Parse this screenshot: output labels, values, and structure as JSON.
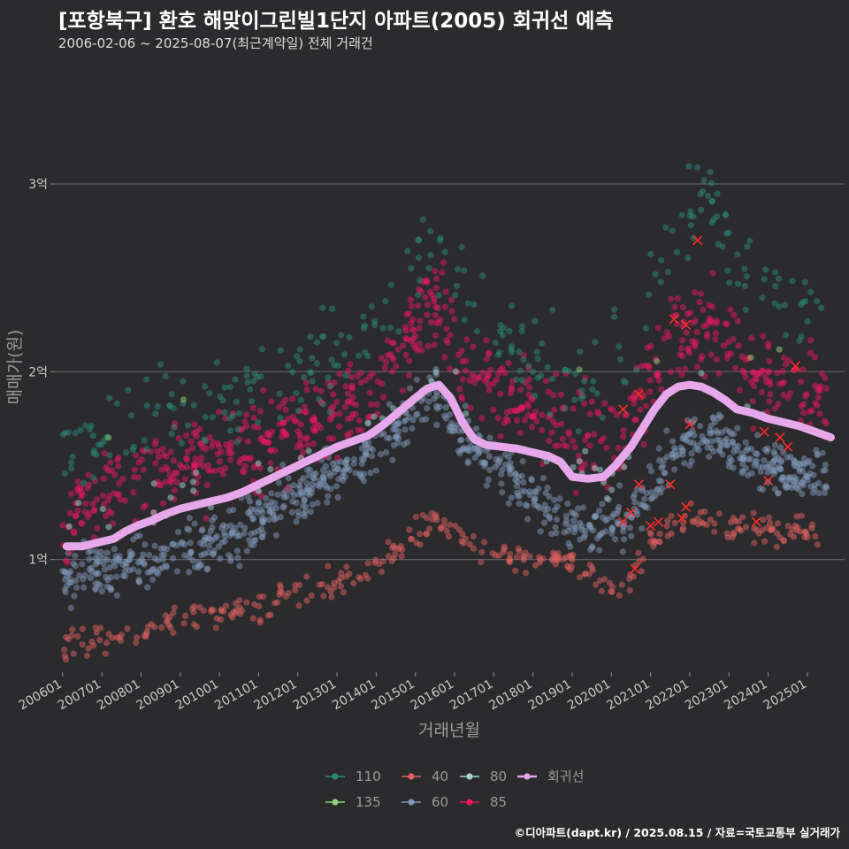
{
  "header": {
    "title": "[포항북구] 환호 해맞이그린빌1단지 아파트(2005) 회귀선 예측",
    "subtitle": "2006-02-06 ~ 2025-08-07(최근계약일) 전체 거래건"
  },
  "caption": "©디아파트(dapt.kr) / 2025.08.15 / 자료=국토교통부 실거래가",
  "chart_data": {
    "type": "scatter",
    "xlabel": "거래년월",
    "ylabel": "매매가(원)",
    "xlim": [
      2005.8,
      2025.95
    ],
    "ylim": [
      0.4,
      3.65
    ],
    "y_unit": "억",
    "x_ticks": [
      {
        "label": "200601",
        "value": 2006.0
      },
      {
        "label": "200701",
        "value": 2007.0
      },
      {
        "label": "200801",
        "value": 2008.0
      },
      {
        "label": "200901",
        "value": 2009.0
      },
      {
        "label": "201001",
        "value": 2010.0
      },
      {
        "label": "201101",
        "value": 2011.0
      },
      {
        "label": "201201",
        "value": 2012.0
      },
      {
        "label": "201301",
        "value": 2013.0
      },
      {
        "label": "201401",
        "value": 2014.0
      },
      {
        "label": "201501",
        "value": 2015.0
      },
      {
        "label": "201601",
        "value": 2016.0
      },
      {
        "label": "201701",
        "value": 2017.0
      },
      {
        "label": "201801",
        "value": 2018.0
      },
      {
        "label": "201901",
        "value": 2019.0
      },
      {
        "label": "202001",
        "value": 2020.0
      },
      {
        "label": "202101",
        "value": 2021.0
      },
      {
        "label": "202201",
        "value": 2022.0
      },
      {
        "label": "202301",
        "value": 2023.0
      },
      {
        "label": "202401",
        "value": 2024.0
      },
      {
        "label": "202501",
        "value": 2025.0
      }
    ],
    "y_ticks": [
      {
        "label": "1억",
        "value": 1
      },
      {
        "label": "2억",
        "value": 2
      },
      {
        "label": "3억",
        "value": 3
      }
    ],
    "grid": true,
    "legend_position": "bottom",
    "legend": [
      {
        "name": "110",
        "color": "#2a8a7a"
      },
      {
        "name": "40",
        "color": "#e06060"
      },
      {
        "name": "80",
        "color": "#9fd4cf"
      },
      {
        "name": "회귀선",
        "color": "#e6a8ea"
      },
      {
        "name": "135",
        "color": "#8fd47a"
      },
      {
        "name": "60",
        "color": "#7f97b8"
      },
      {
        "name": "85",
        "color": "#e8185f"
      }
    ],
    "series_trends": [
      {
        "name": "40",
        "color": "#e06060",
        "points": [
          [
            2006.0,
            0.55
          ],
          [
            2008.0,
            0.62
          ],
          [
            2010.0,
            0.71
          ],
          [
            2012.0,
            0.8
          ],
          [
            2014.0,
            0.95
          ],
          [
            2015.5,
            1.22
          ],
          [
            2016.5,
            1.05
          ],
          [
            2018.5,
            1.0
          ],
          [
            2019.5,
            0.93
          ],
          [
            2020.2,
            0.85
          ],
          [
            2021.0,
            1.1
          ],
          [
            2022.0,
            1.25
          ],
          [
            2023.0,
            1.18
          ],
          [
            2024.0,
            1.18
          ],
          [
            2025.3,
            1.12
          ]
        ],
        "spread": 0.04,
        "count": 340
      },
      {
        "name": "60",
        "color": "#7f97b8",
        "points": [
          [
            2006.0,
            0.9
          ],
          [
            2008.0,
            0.98
          ],
          [
            2010.0,
            1.08
          ],
          [
            2012.0,
            1.35
          ],
          [
            2014.0,
            1.58
          ],
          [
            2015.5,
            1.9
          ],
          [
            2016.0,
            1.7
          ],
          [
            2017.0,
            1.5
          ],
          [
            2018.5,
            1.25
          ],
          [
            2019.5,
            1.15
          ],
          [
            2020.5,
            1.22
          ],
          [
            2021.5,
            1.55
          ],
          [
            2022.5,
            1.7
          ],
          [
            2023.5,
            1.55
          ],
          [
            2024.5,
            1.45
          ],
          [
            2025.5,
            1.45
          ]
        ],
        "spread": 0.07,
        "count": 900
      },
      {
        "name": "85",
        "color": "#e8185f",
        "points": [
          [
            2006.0,
            1.2
          ],
          [
            2008.0,
            1.45
          ],
          [
            2010.0,
            1.55
          ],
          [
            2012.0,
            1.7
          ],
          [
            2014.0,
            1.92
          ],
          [
            2015.5,
            2.35
          ],
          [
            2016.0,
            2.1
          ],
          [
            2017.0,
            1.95
          ],
          [
            2018.5,
            1.75
          ],
          [
            2019.5,
            1.6
          ],
          [
            2020.5,
            1.75
          ],
          [
            2021.5,
            2.2
          ],
          [
            2022.5,
            2.25
          ],
          [
            2023.5,
            2.0
          ],
          [
            2024.5,
            1.95
          ],
          [
            2025.5,
            1.85
          ]
        ],
        "spread": 0.12,
        "count": 750
      },
      {
        "name": "110",
        "color": "#2a8a7a",
        "points": [
          [
            2006.0,
            1.55
          ],
          [
            2008.0,
            1.75
          ],
          [
            2010.0,
            1.85
          ],
          [
            2012.0,
            2.0
          ],
          [
            2014.0,
            2.25
          ],
          [
            2015.5,
            2.7
          ],
          [
            2016.5,
            2.4
          ],
          [
            2018.0,
            2.05
          ],
          [
            2019.5,
            1.9
          ],
          [
            2020.5,
            2.05
          ],
          [
            2021.5,
            2.7
          ],
          [
            2022.3,
            2.95
          ],
          [
            2023.5,
            2.5
          ],
          [
            2024.5,
            2.4
          ],
          [
            2025.5,
            2.3
          ]
        ],
        "spread": 0.12,
        "count": 280
      },
      {
        "name": "80",
        "color": "#9fd4cf",
        "points": [
          [
            2006.0,
            1.2
          ],
          [
            2010.0,
            1.35
          ],
          [
            2014.0,
            1.75
          ],
          [
            2015.5,
            2.05
          ],
          [
            2018.0,
            1.55
          ],
          [
            2020.0,
            1.4
          ],
          [
            2022.0,
            1.95
          ],
          [
            2025.5,
            1.65
          ]
        ],
        "spread": 0.06,
        "count": 50
      },
      {
        "name": "135",
        "color": "#8fd47a",
        "points": [
          [
            2006.0,
            1.6
          ],
          [
            2010.0,
            1.9
          ],
          [
            2014.0,
            2.1
          ],
          [
            2016.0,
            2.1
          ],
          [
            2020.0,
            2.0
          ],
          [
            2025.5,
            2.2
          ]
        ],
        "spread": 0.06,
        "count": 6
      }
    ],
    "recent_deals_marked": [
      [
        2020.3,
        1.2
      ],
      [
        2020.5,
        1.25
      ],
      [
        2020.7,
        1.4
      ],
      [
        2020.6,
        0.95
      ],
      [
        2021.0,
        1.18
      ],
      [
        2021.2,
        1.2
      ],
      [
        2021.5,
        1.4
      ],
      [
        2021.8,
        1.22
      ],
      [
        2021.9,
        1.28
      ],
      [
        2022.2,
        2.7
      ],
      [
        2021.6,
        2.28
      ],
      [
        2021.9,
        2.25
      ],
      [
        2020.3,
        1.8
      ],
      [
        2020.7,
        1.88
      ],
      [
        2022.0,
        1.72
      ],
      [
        2023.7,
        1.2
      ],
      [
        2023.9,
        1.68
      ],
      [
        2024.0,
        1.42
      ],
      [
        2024.3,
        1.65
      ],
      [
        2024.5,
        1.6
      ],
      [
        2024.7,
        2.03
      ]
    ],
    "regression_line": {
      "name": "회귀선",
      "color": "#e6a8ea",
      "points": [
        [
          2006.1,
          1.07
        ],
        [
          2006.5,
          1.07
        ],
        [
          2006.9,
          1.09
        ],
        [
          2007.3,
          1.11
        ],
        [
          2007.6,
          1.15
        ],
        [
          2007.9,
          1.18
        ],
        [
          2008.3,
          1.21
        ],
        [
          2008.6,
          1.24
        ],
        [
          2009.0,
          1.27
        ],
        [
          2009.4,
          1.29
        ],
        [
          2009.8,
          1.31
        ],
        [
          2010.2,
          1.33
        ],
        [
          2010.6,
          1.36
        ],
        [
          2011.0,
          1.4
        ],
        [
          2011.4,
          1.44
        ],
        [
          2011.8,
          1.48
        ],
        [
          2012.2,
          1.52
        ],
        [
          2012.6,
          1.56
        ],
        [
          2013.0,
          1.6
        ],
        [
          2013.4,
          1.63
        ],
        [
          2013.8,
          1.66
        ],
        [
          2014.2,
          1.72
        ],
        [
          2014.6,
          1.79
        ],
        [
          2015.0,
          1.86
        ],
        [
          2015.3,
          1.91
        ],
        [
          2015.6,
          1.93
        ],
        [
          2015.9,
          1.86
        ],
        [
          2016.2,
          1.73
        ],
        [
          2016.5,
          1.64
        ],
        [
          2016.8,
          1.61
        ],
        [
          2017.2,
          1.6
        ],
        [
          2017.6,
          1.59
        ],
        [
          2018.0,
          1.57
        ],
        [
          2018.4,
          1.55
        ],
        [
          2018.7,
          1.52
        ],
        [
          2019.0,
          1.44
        ],
        [
          2019.4,
          1.43
        ],
        [
          2019.8,
          1.44
        ],
        [
          2020.1,
          1.5
        ],
        [
          2020.5,
          1.6
        ],
        [
          2020.8,
          1.7
        ],
        [
          2021.1,
          1.8
        ],
        [
          2021.4,
          1.88
        ],
        [
          2021.7,
          1.92
        ],
        [
          2022.0,
          1.93
        ],
        [
          2022.3,
          1.92
        ],
        [
          2022.6,
          1.89
        ],
        [
          2022.9,
          1.85
        ],
        [
          2023.2,
          1.8
        ],
        [
          2023.6,
          1.78
        ],
        [
          2024.0,
          1.75
        ],
        [
          2024.4,
          1.73
        ],
        [
          2024.8,
          1.71
        ],
        [
          2025.2,
          1.68
        ],
        [
          2025.6,
          1.65
        ]
      ]
    }
  }
}
